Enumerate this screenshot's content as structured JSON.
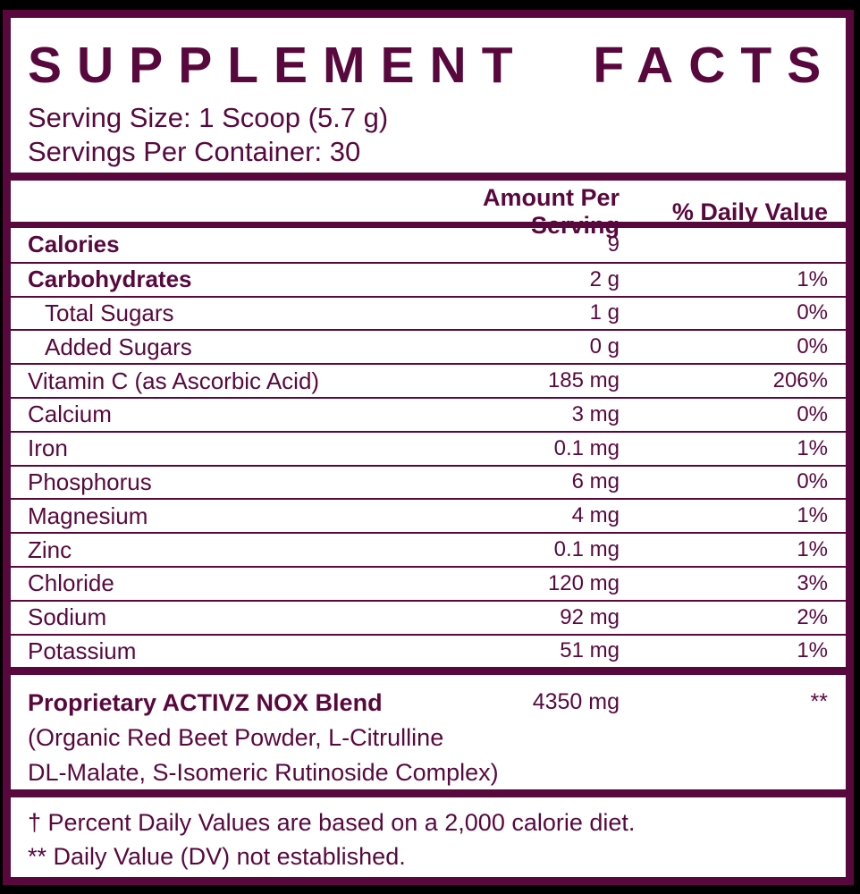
{
  "colors": {
    "brand": "#59083E",
    "panel": "#FFFFFF",
    "background": "#000000"
  },
  "header": {
    "title": "SUPPLEMENT FACTS",
    "serving_size": "Serving Size: 1 Scoop (5.7 g)",
    "servings_per_container": "Servings Per Container: 30"
  },
  "table": {
    "columns": {
      "amount": "Amount Per Serving",
      "daily_value": "% Daily Value"
    },
    "rows": [
      {
        "name": "Calories",
        "amount": "9",
        "dv": "",
        "bold": true,
        "indent": false
      },
      {
        "name": "Carbohydrates",
        "amount": "2 g",
        "dv": "1%",
        "bold": true,
        "indent": false
      },
      {
        "name": "Total Sugars",
        "amount": "1 g",
        "dv": "0%",
        "bold": false,
        "indent": true
      },
      {
        "name": "Added Sugars",
        "amount": "0 g",
        "dv": "0%",
        "bold": false,
        "indent": true
      },
      {
        "name": "Vitamin C (as Ascorbic Acid)",
        "amount": "185 mg",
        "dv": "206%",
        "bold": false,
        "indent": false
      },
      {
        "name": "Calcium",
        "amount": "3 mg",
        "dv": "0%",
        "bold": false,
        "indent": false
      },
      {
        "name": "Iron",
        "amount": "0.1 mg",
        "dv": "1%",
        "bold": false,
        "indent": false
      },
      {
        "name": "Phosphorus",
        "amount": "6 mg",
        "dv": "0%",
        "bold": false,
        "indent": false
      },
      {
        "name": "Magnesium",
        "amount": "4 mg",
        "dv": "1%",
        "bold": false,
        "indent": false
      },
      {
        "name": "Zinc",
        "amount": "0.1 mg",
        "dv": "1%",
        "bold": false,
        "indent": false
      },
      {
        "name": "Chloride",
        "amount": "120 mg",
        "dv": "3%",
        "bold": false,
        "indent": false
      },
      {
        "name": "Sodium",
        "amount": "92 mg",
        "dv": "2%",
        "bold": false,
        "indent": false
      },
      {
        "name": "Potassium",
        "amount": "51 mg",
        "dv": "1%",
        "bold": false,
        "indent": false
      }
    ]
  },
  "blend": {
    "name": "Proprietary ACTIVZ NOX Blend",
    "amount": "4350 mg",
    "dv": "**",
    "description_lines": [
      "(Organic Red Beet Powder, L-Citrulline",
      "DL-Malate, S-Isomeric Rutinoside Complex)"
    ]
  },
  "footnotes": [
    "† Percent Daily Values are based on a 2,000 calorie diet.",
    "** Daily Value (DV) not established."
  ]
}
